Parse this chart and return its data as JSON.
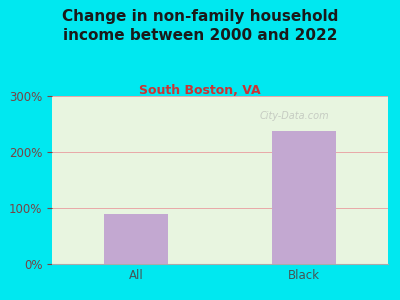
{
  "title": "Change in non-family household\nincome between 2000 and 2022",
  "subtitle": "South Boston, VA",
  "categories": [
    "All",
    "Black"
  ],
  "values": [
    90,
    238
  ],
  "bar_color": "#c3a8d1",
  "background_outer": "#00e8f0",
  "background_plot": "#e8f5e0",
  "grid_color": "#e8a8a8",
  "title_color": "#1a1a1a",
  "subtitle_color": "#cc3333",
  "tick_label_color": "#774444",
  "xlabel_color": "#445555",
  "ylim": [
    0,
    300
  ],
  "yticks": [
    0,
    100,
    200,
    300
  ],
  "title_fontsize": 11,
  "subtitle_fontsize": 9,
  "tick_fontsize": 8.5,
  "watermark": "City-Data.com"
}
